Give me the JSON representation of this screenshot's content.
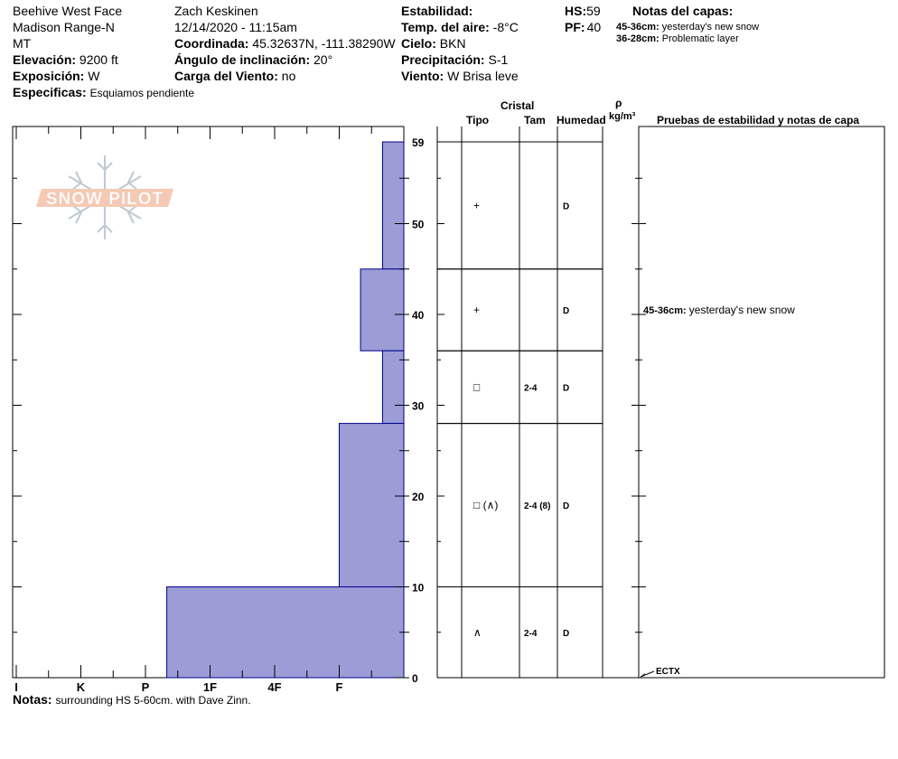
{
  "header": {
    "location": "Beehive West Face",
    "range": "Madison Range-N",
    "state": "MT",
    "elevation_label": "Elevación:",
    "elevation_value": "9200 ft",
    "aspect_label": "Exposición:",
    "aspect_value": "W",
    "specifics_label": "Especificas:",
    "specifics_value": "Esquiamos pendiente",
    "observer": "Zach Keskinen",
    "datetime": "12/14/2020 - 11:15am",
    "coord_label": "Coordinada:",
    "coord_value": "45.32637N, -111.38290W",
    "slope_label": "Ángulo de inclinación:",
    "slope_value": "20°",
    "wind_load_label": "Carga del Viento:",
    "wind_load_value": "no",
    "stability_label": "Estabilidad:",
    "stability_value": "",
    "air_temp_label": "Temp. del aire:",
    "air_temp_value": "-8°C",
    "sky_label": "Cielo:",
    "sky_value": "BKN",
    "precip_label": "Precipitación:",
    "precip_value": "S-1",
    "wind_label": "Viento:",
    "wind_value": "W Brisa leve",
    "hs_label": "HS:",
    "hs_value": "59",
    "pf_label": "PF:",
    "pf_value": "40",
    "layer_notes_title": "Notas del capas:",
    "layer_notes": [
      {
        "range": "45-36cm:",
        "text": "yesterday's new snow"
      },
      {
        "range": "36-28cm:",
        "text": "Problematic layer"
      }
    ]
  },
  "logo": {
    "text": "SNOW PILOT"
  },
  "columns": {
    "cristal": "Cristal",
    "tipo": "Tipo",
    "tam": "Tam",
    "humedad": "Humedad",
    "rho": "ρ",
    "density_unit": "kg/m³",
    "tests": "Pruebas de estabilidad y notas de capa"
  },
  "footer": {
    "notes_label": "Notas:",
    "notes_value": "surrounding HS 5-60cm. with Dave Zinn."
  },
  "chart_data": {
    "type": "bar",
    "title": "",
    "ylabel": "",
    "ylim": [
      0,
      60
    ],
    "y_ticks": [
      0,
      10,
      20,
      30,
      40,
      50,
      59
    ],
    "hardness_scale": [
      "I",
      "K",
      "P",
      "1F",
      "4F",
      "F"
    ],
    "hardness_scale_values": [
      6,
      5,
      4,
      3,
      2,
      1
    ],
    "layers": [
      {
        "top": 59,
        "bottom": 45,
        "hardness": "F",
        "hardness_value": 0.33,
        "grain": "+",
        "size": "",
        "moisture": "D"
      },
      {
        "top": 45,
        "bottom": 36,
        "hardness": "F+",
        "hardness_value": 0.67,
        "grain": "+",
        "size": "",
        "moisture": "D"
      },
      {
        "top": 36,
        "bottom": 28,
        "hardness": "F",
        "hardness_value": 0.33,
        "grain": "□",
        "size": "2-4",
        "moisture": "D"
      },
      {
        "top": 28,
        "bottom": 10,
        "hardness": "4F-",
        "hardness_value": 1.0,
        "grain": "□ (∧)",
        "size": "2-4 (8)",
        "moisture": "D"
      },
      {
        "top": 10,
        "bottom": 0,
        "hardness": "P",
        "hardness_value": 3.67,
        "grain": "∧",
        "size": "2-4",
        "moisture": "D"
      }
    ],
    "layer_comments": [
      {
        "depth_top": 45,
        "depth_bottom": 36,
        "label": "45-36cm:",
        "text": "yesterday's new snow"
      }
    ],
    "tests": [
      {
        "depth": 0,
        "label": "ECTX"
      }
    ],
    "colors": {
      "bar_fill": "#9c9cd6",
      "bar_stroke": "#00008b"
    }
  }
}
